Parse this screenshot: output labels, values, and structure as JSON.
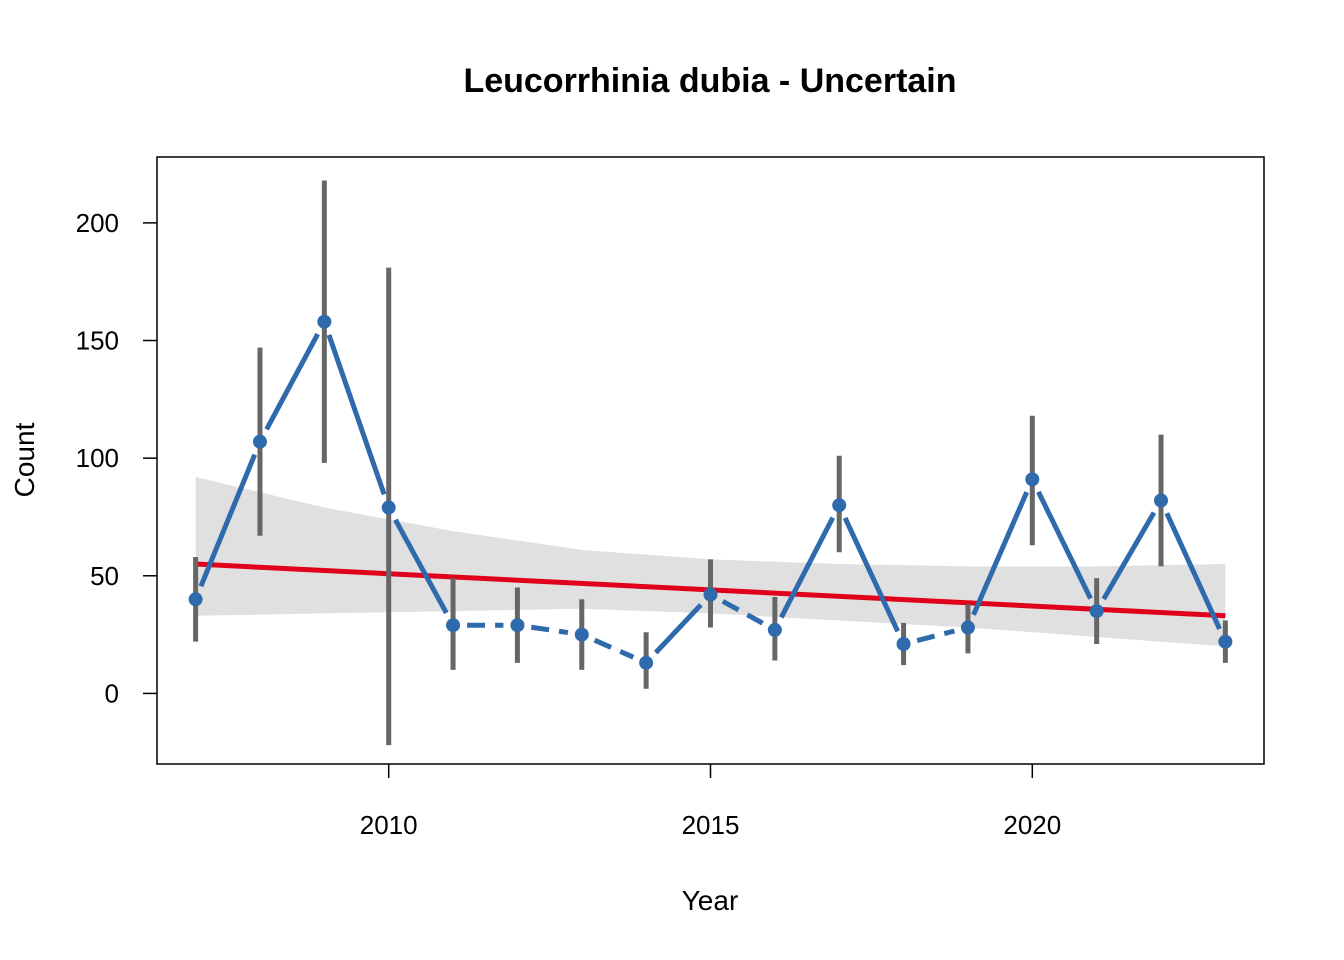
{
  "chart_data": {
    "type": "line",
    "title": "Leucorrhinia dubia - Uncertain",
    "xlabel": "Year",
    "ylabel": "Count",
    "xlim": [
      2006.4,
      2023.6
    ],
    "ylim": [
      -30,
      228
    ],
    "x_ticks": [
      2010,
      2015,
      2020
    ],
    "y_ticks": [
      0,
      50,
      100,
      150,
      200
    ],
    "grid": false,
    "legend": "none",
    "colors": {
      "series": "#2f6aad",
      "error_bar": "#666666",
      "trend": "#e0001b",
      "ribbon": "#e0e0e0"
    },
    "series": [
      {
        "x": [
          2007,
          2008,
          2009,
          2010,
          2011,
          2012,
          2013,
          2014,
          2015,
          2016,
          2017,
          2018,
          2019,
          2020,
          2021,
          2022,
          2023
        ],
        "y": [
          40,
          107,
          158,
          79,
          29,
          29,
          25,
          13,
          42,
          27,
          80,
          21,
          28,
          91,
          35,
          82,
          22
        ],
        "lower": [
          22,
          67,
          98,
          -22,
          10,
          13,
          10,
          2,
          28,
          14,
          60,
          12,
          17,
          63,
          21,
          54,
          13
        ],
        "upper": [
          58,
          147,
          218,
          181,
          49,
          45,
          40,
          26,
          57,
          41,
          101,
          30,
          38,
          118,
          49,
          110,
          31
        ],
        "line_style": [
          "solid",
          "solid",
          "solid",
          "solid",
          "dashed",
          "dashed",
          "dashed",
          "solid",
          "dashed",
          "solid",
          "solid",
          "dashed",
          "solid",
          "solid",
          "solid",
          "solid"
        ]
      }
    ],
    "trend": {
      "x": [
        2007,
        2023
      ],
      "y": [
        55,
        33
      ],
      "ribbon_x": [
        2007,
        2009,
        2011,
        2013,
        2015,
        2017,
        2019,
        2021,
        2023
      ],
      "ribbon_lower": [
        33,
        34,
        35,
        36,
        34,
        31,
        28,
        24,
        20
      ],
      "ribbon_upper": [
        92,
        79,
        69,
        61,
        57,
        55,
        54,
        54,
        55
      ]
    }
  }
}
